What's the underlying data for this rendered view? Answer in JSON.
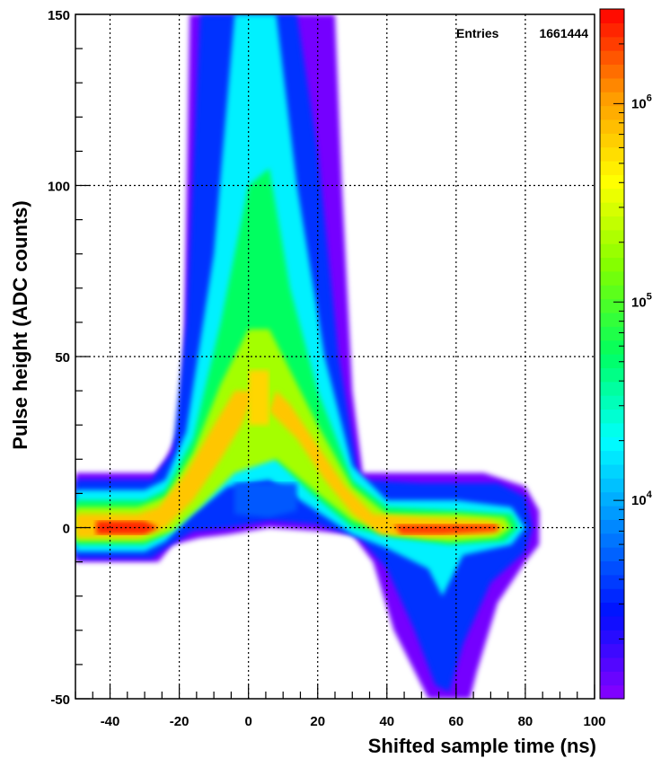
{
  "chart_data": {
    "type": "heatmap",
    "title": "",
    "xlabel": "Shifted sample time (ns)",
    "ylabel": "Pulse height (ADC counts)",
    "xlim": [
      -50,
      100
    ],
    "ylim": [
      -50,
      150
    ],
    "x_ticks": [
      "-40",
      "-20",
      "0",
      "20",
      "40",
      "60",
      "80",
      "100"
    ],
    "y_ticks": [
      "-50",
      "0",
      "50",
      "100",
      "150"
    ],
    "grid": true,
    "color_scale": "log",
    "colorbar": {
      "range": [
        1000,
        3000000
      ],
      "labels": [
        {
          "value": 10000,
          "base": "10",
          "exp": "4"
        },
        {
          "value": 100000,
          "base": "10",
          "exp": "5"
        },
        {
          "value": 1000000,
          "base": "10",
          "exp": "6"
        }
      ],
      "palette": [
        "#8a00ff",
        "#0010ff",
        "#0088ff",
        "#00ffff",
        "#00ff60",
        "#80ff00",
        "#ffff00",
        "#ff9900",
        "#ff0000"
      ]
    },
    "stats_box": {
      "label": "Entries",
      "value": "1661444"
    }
  }
}
